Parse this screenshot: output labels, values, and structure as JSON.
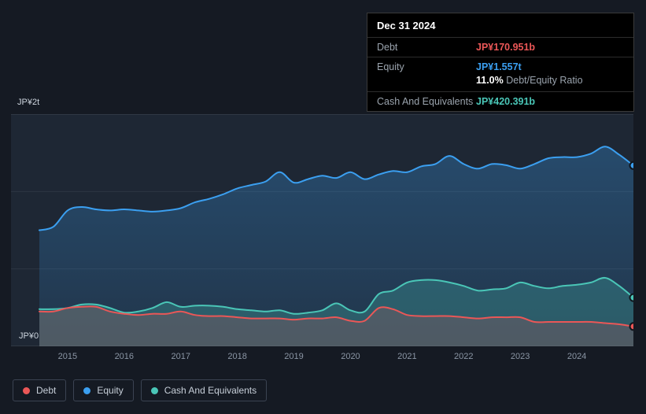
{
  "tooltip": {
    "date": "Dec 31 2024",
    "debt_label": "Debt",
    "debt_value": "JP¥170.951b",
    "equity_label": "Equity",
    "equity_value": "JP¥1.557t",
    "ratio_value": "11.0%",
    "ratio_label": "Debt/Equity Ratio",
    "cash_label": "Cash And Equivalents",
    "cash_value": "JP¥420.391b"
  },
  "axis": {
    "y_top": "JP¥2t",
    "y_bottom": "JP¥0"
  },
  "colors": {
    "debt": "#eb5757",
    "equity": "#3b9ff0",
    "cash": "#4ac6b7",
    "background": "#151a23",
    "panel": "#1e2734"
  },
  "legend": {
    "items": [
      {
        "label": "Debt",
        "color": "#eb5757"
      },
      {
        "label": "Equity",
        "color": "#3b9ff0"
      },
      {
        "label": "Cash And Equivalents",
        "color": "#4ac6b7"
      }
    ]
  },
  "chart_data": {
    "type": "area",
    "unit": "JP¥ trillions",
    "x": [
      2014.5,
      2014.75,
      2015,
      2015.25,
      2015.5,
      2015.75,
      2016,
      2016.25,
      2016.5,
      2016.75,
      2017,
      2017.25,
      2017.5,
      2017.75,
      2018,
      2018.25,
      2018.5,
      2018.75,
      2019,
      2019.25,
      2019.5,
      2019.75,
      2020,
      2020.25,
      2020.5,
      2020.75,
      2021,
      2021.25,
      2021.5,
      2021.75,
      2022,
      2022.25,
      2022.5,
      2022.75,
      2023,
      2023.25,
      2023.5,
      2023.75,
      2024,
      2024.25,
      2024.5,
      2024.75,
      2025
    ],
    "series": [
      {
        "name": "Debt",
        "color": "#eb5757",
        "area_opacity": 0.18,
        "values": [
          0.3,
          0.3,
          0.33,
          0.34,
          0.34,
          0.3,
          0.28,
          0.27,
          0.28,
          0.28,
          0.3,
          0.27,
          0.26,
          0.26,
          0.25,
          0.24,
          0.24,
          0.24,
          0.23,
          0.24,
          0.24,
          0.25,
          0.22,
          0.22,
          0.33,
          0.32,
          0.27,
          0.26,
          0.26,
          0.26,
          0.25,
          0.24,
          0.25,
          0.25,
          0.25,
          0.21,
          0.21,
          0.21,
          0.21,
          0.21,
          0.2,
          0.19,
          0.171
        ]
      },
      {
        "name": "Equity",
        "color": "#3b9ff0",
        "area_opacity": 0.25,
        "values": [
          1.0,
          1.03,
          1.17,
          1.2,
          1.18,
          1.17,
          1.18,
          1.17,
          1.16,
          1.17,
          1.19,
          1.24,
          1.27,
          1.31,
          1.36,
          1.39,
          1.42,
          1.5,
          1.41,
          1.44,
          1.47,
          1.45,
          1.5,
          1.44,
          1.48,
          1.51,
          1.5,
          1.55,
          1.57,
          1.64,
          1.57,
          1.53,
          1.57,
          1.56,
          1.53,
          1.57,
          1.62,
          1.63,
          1.63,
          1.66,
          1.72,
          1.65,
          1.557
        ]
      },
      {
        "name": "Cash And Equivalents",
        "color": "#4ac6b7",
        "area_opacity": 0.26,
        "values": [
          0.32,
          0.32,
          0.33,
          0.36,
          0.36,
          0.33,
          0.29,
          0.3,
          0.33,
          0.38,
          0.34,
          0.35,
          0.35,
          0.34,
          0.32,
          0.31,
          0.3,
          0.31,
          0.28,
          0.29,
          0.31,
          0.37,
          0.31,
          0.3,
          0.45,
          0.48,
          0.55,
          0.57,
          0.57,
          0.55,
          0.52,
          0.48,
          0.49,
          0.5,
          0.55,
          0.52,
          0.5,
          0.52,
          0.53,
          0.55,
          0.59,
          0.52,
          0.42
        ]
      }
    ],
    "end_values": {
      "date": "Dec 31 2024",
      "debt": "JP¥170.951b",
      "equity": "JP¥1.557t",
      "cash": "JP¥420.391b",
      "debt_equity_ratio": "11.0%"
    },
    "xlim": [
      2014,
      2025
    ],
    "ylim": [
      0,
      2
    ],
    "grid_values": [
      0,
      0.6667,
      1.3333,
      2
    ],
    "x_tick_labels": [
      "2015",
      "2016",
      "2017",
      "2018",
      "2019",
      "2020",
      "2021",
      "2022",
      "2023",
      "2024"
    ],
    "y_tick_labels": [
      "JP¥0",
      "JP¥2t"
    ],
    "legend_position": "bottom-left",
    "grid": true,
    "draw_order": [
      1,
      2,
      0
    ]
  }
}
